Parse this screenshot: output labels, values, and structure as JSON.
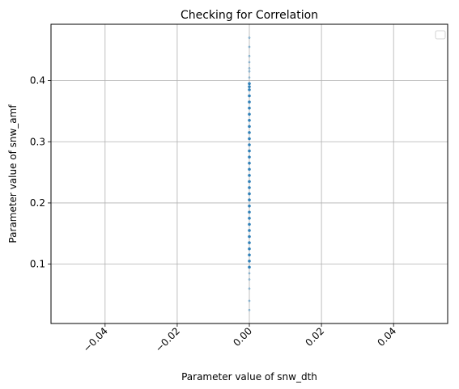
{
  "chart_data": {
    "type": "scatter",
    "title": "Checking for Correlation",
    "xlabel": "Parameter value of snw_dth",
    "ylabel": "Parameter value of snw_amf",
    "xlim": [
      -0.055,
      0.055
    ],
    "ylim": [
      0.003,
      0.492
    ],
    "xticks": [
      -0.04,
      -0.02,
      0.0,
      0.02,
      0.04
    ],
    "xtick_labels": [
      "−0.04",
      "−0.02",
      "0.00",
      "0.02",
      "0.04"
    ],
    "yticks": [
      0.1,
      0.2,
      0.3,
      0.4
    ],
    "ytick_labels": [
      "0.1",
      "0.2",
      "0.3",
      "0.4"
    ],
    "xtick_rotation": 45,
    "grid": true,
    "legend": "top-right (empty)",
    "point_color": "#1f77b4",
    "series": [
      {
        "x": [
          0,
          0,
          0,
          0,
          0,
          0,
          0,
          0,
          0,
          0,
          0,
          0,
          0,
          0,
          0,
          0,
          0,
          0,
          0,
          0,
          0,
          0,
          0,
          0,
          0,
          0,
          0,
          0,
          0,
          0,
          0,
          0,
          0,
          0,
          0,
          0,
          0,
          0,
          0,
          0,
          0,
          0,
          0,
          0
        ],
        "y": [
          0.025,
          0.04,
          0.06,
          0.075,
          0.085,
          0.095,
          0.105,
          0.115,
          0.125,
          0.135,
          0.145,
          0.155,
          0.165,
          0.175,
          0.185,
          0.195,
          0.205,
          0.215,
          0.225,
          0.235,
          0.245,
          0.255,
          0.265,
          0.275,
          0.285,
          0.295,
          0.305,
          0.315,
          0.325,
          0.335,
          0.345,
          0.355,
          0.365,
          0.375,
          0.385,
          0.39,
          0.395,
          0.405,
          0.415,
          0.42,
          0.43,
          0.44,
          0.455,
          0.47
        ]
      }
    ]
  }
}
